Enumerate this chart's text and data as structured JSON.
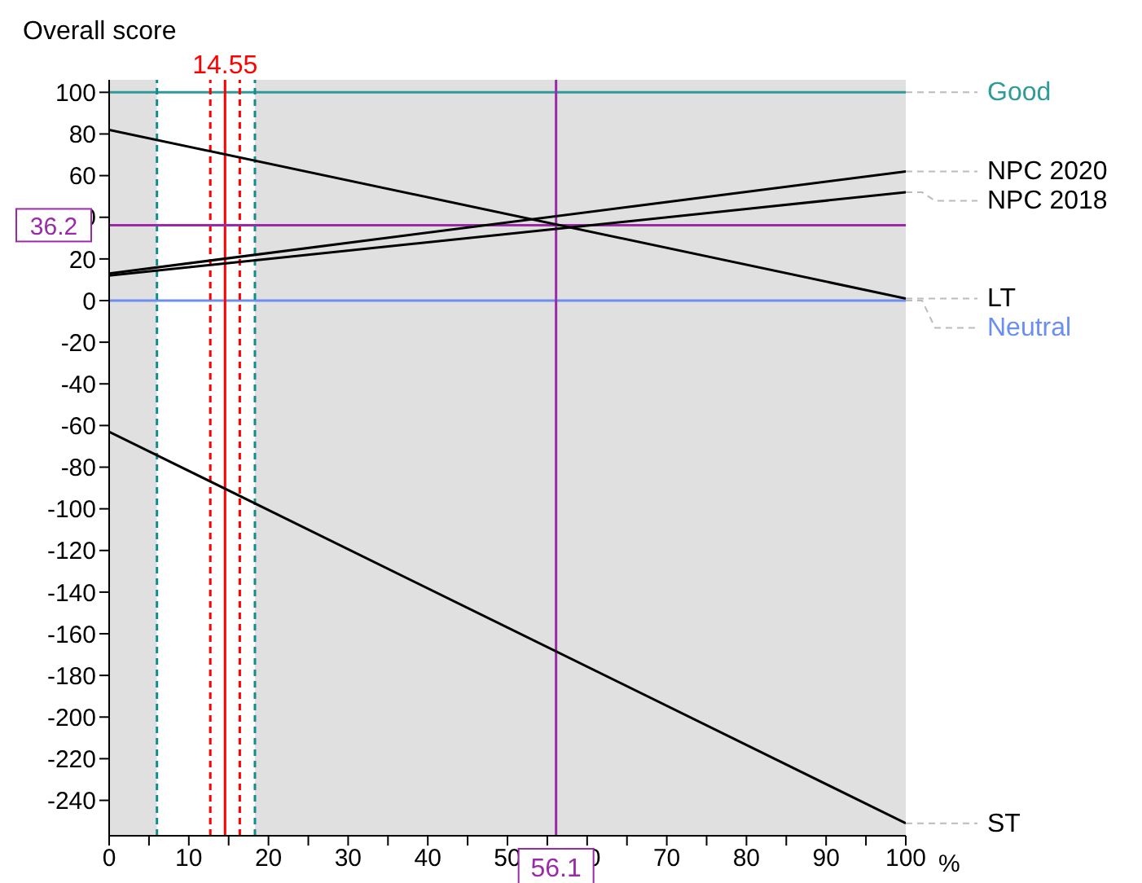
{
  "chart_data": {
    "type": "line",
    "ylabel": "Overall score",
    "xlabel": "%",
    "xlim": [
      0,
      100
    ],
    "ylim": [
      -257,
      106
    ],
    "xticks": [
      0,
      {
        "value": 5,
        "label": null
      },
      10,
      {
        "value": 15,
        "label": null
      },
      20,
      {
        "value": 25,
        "label": null
      },
      30,
      {
        "value": 35,
        "label": null
      },
      40,
      {
        "value": 45,
        "label": null
      },
      50,
      {
        "value": 55,
        "label": null
      },
      60,
      {
        "value": 65,
        "label": null
      },
      70,
      {
        "value": 75,
        "label": null
      },
      80,
      {
        "value": 85,
        "label": null
      },
      90,
      {
        "value": 95,
        "label": null
      },
      100
    ],
    "yticks": [
      100,
      80,
      60,
      40,
      20,
      0,
      -20,
      -40,
      -60,
      -80,
      -100,
      -120,
      -140,
      -160,
      -180,
      -200,
      -220,
      -240
    ],
    "x": [
      0,
      100
    ],
    "series": [
      {
        "name": "NPC 2020",
        "color": "#000000",
        "values": [
          13,
          62
        ]
      },
      {
        "name": "NPC 2018",
        "color": "#000000",
        "values": [
          12,
          52
        ]
      },
      {
        "name": "LT",
        "color": "#000000",
        "values": [
          82,
          1
        ]
      },
      {
        "name": "ST",
        "color": "#000000",
        "values": [
          -63,
          -251
        ]
      }
    ],
    "bands": [
      {
        "axis": "x",
        "from": 6,
        "to": 18.3,
        "color": "#ffffff"
      }
    ],
    "ref_lines": [
      {
        "axis": "y",
        "value": 100,
        "label": "Good",
        "color": "#2e9a9a",
        "line_style": "solid"
      },
      {
        "axis": "y",
        "value": 0,
        "label": "Neutral",
        "color": "#6a8ff0",
        "line_style": "solid"
      },
      {
        "axis": "x",
        "value": 6,
        "label": null,
        "color": "#148c8c",
        "line_style": "dashed"
      },
      {
        "axis": "x",
        "value": 18.3,
        "label": null,
        "color": "#148c8c",
        "line_style": "dashed"
      },
      {
        "axis": "x",
        "value": 12.7,
        "label": null,
        "color": "#ff0000",
        "line_style": "dashed"
      },
      {
        "axis": "x",
        "value": 16.4,
        "label": null,
        "color": "#ff0000",
        "line_style": "dashed"
      },
      {
        "axis": "x",
        "value": 14.55,
        "label": "14.55",
        "color": "#ff0000",
        "line_style": "solid"
      },
      {
        "axis": "x",
        "value": 56.1,
        "label": "56.1",
        "color": "#9a2aa8",
        "line_style": "solid"
      },
      {
        "axis": "y",
        "value": 36.2,
        "label": "36.2",
        "color": "#9a2aa8",
        "line_style": "solid"
      }
    ],
    "grid": false,
    "legend": false,
    "marker": "none",
    "line_style": "solid"
  }
}
